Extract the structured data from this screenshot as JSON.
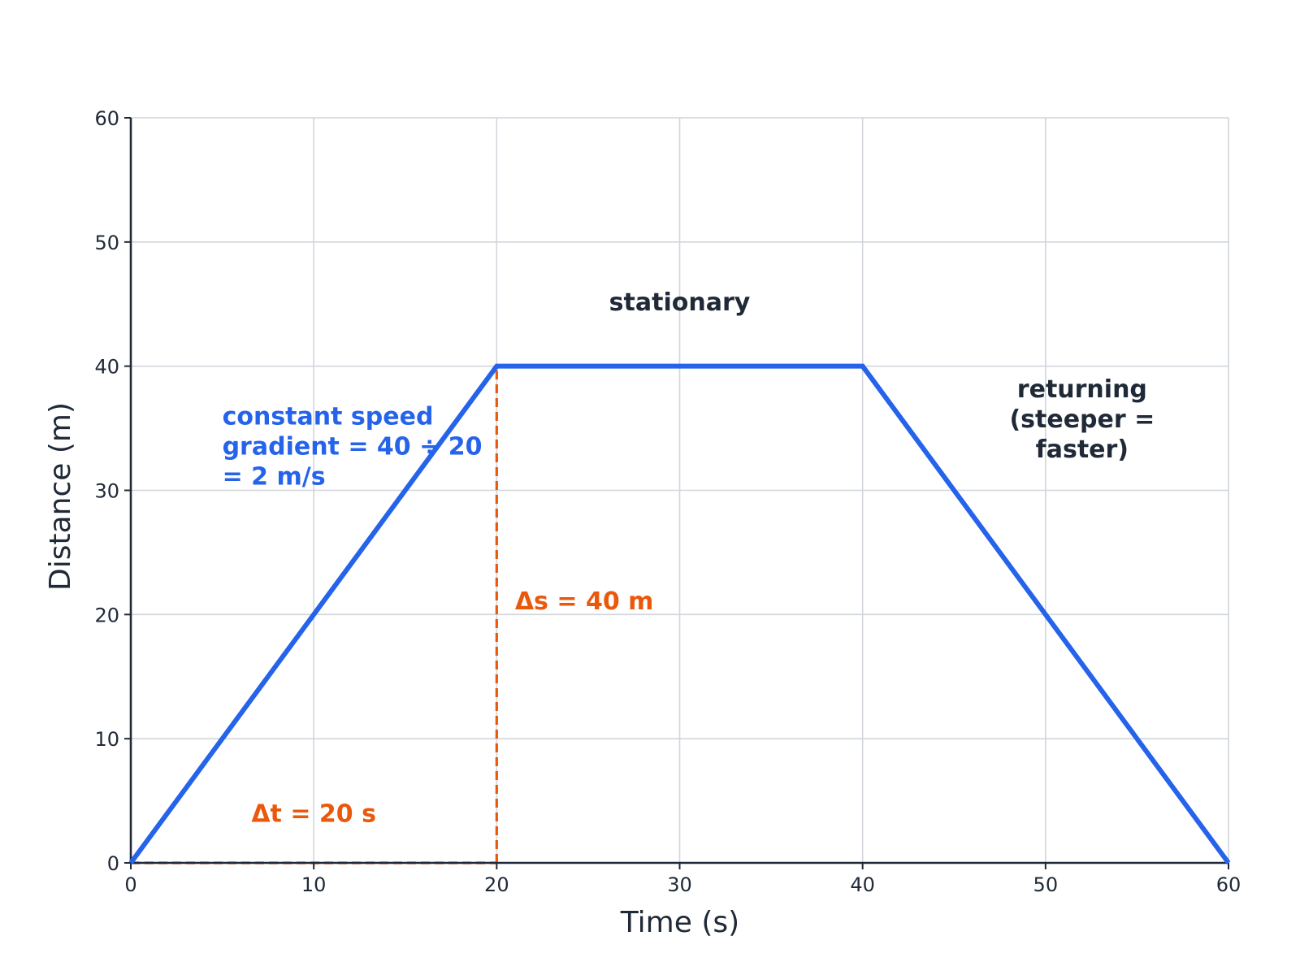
{
  "chart_data": {
    "type": "line",
    "xlabel": "Time (s)",
    "ylabel": "Distance (m)",
    "xlim": [
      0,
      60
    ],
    "ylim": [
      0,
      60
    ],
    "xticks": [
      0,
      10,
      20,
      30,
      40,
      50,
      60
    ],
    "yticks": [
      0,
      10,
      20,
      30,
      40,
      50,
      60
    ],
    "grid": true,
    "series": [
      {
        "x": [
          0,
          20,
          40,
          60
        ],
        "y": [
          0,
          40,
          40,
          0
        ],
        "color": "#2563eb"
      }
    ],
    "guides": [
      {
        "x": [
          20,
          20
        ],
        "y": [
          0,
          40
        ],
        "color": "#ea580c",
        "style": "dashed"
      },
      {
        "x": [
          0,
          20
        ],
        "y": [
          0,
          0
        ],
        "color": "#ea580c",
        "style": "dashed"
      }
    ],
    "annotations": [
      {
        "lines": [
          "stationary"
        ],
        "x": 30,
        "y": 44.5,
        "anchor": "middle",
        "color": "#1f2937"
      },
      {
        "lines": [
          "returning",
          "(steeper =",
          "faster)"
        ],
        "x": 52.0,
        "y": 37.5,
        "anchor": "middle",
        "color": "#1f2937"
      },
      {
        "lines": [
          "constant speed",
          "gradient = 40 ÷ 20",
          "= 2 m/s"
        ],
        "x": 5.0,
        "y": 35.3,
        "anchor": "start",
        "color": "#2563eb"
      },
      {
        "lines": [
          "Δs = 40 m"
        ],
        "x": 21.0,
        "y": 20.4,
        "anchor": "start",
        "color": "#ea580c"
      },
      {
        "lines": [
          "Δt = 20 s"
        ],
        "x": 10.0,
        "y": 3.3,
        "anchor": "middle",
        "color": "#ea580c"
      }
    ]
  },
  "colors": {
    "axis": "#1f2937",
    "grid": "#d1d5db",
    "line": "#2563eb",
    "guide": "#ea580c"
  }
}
